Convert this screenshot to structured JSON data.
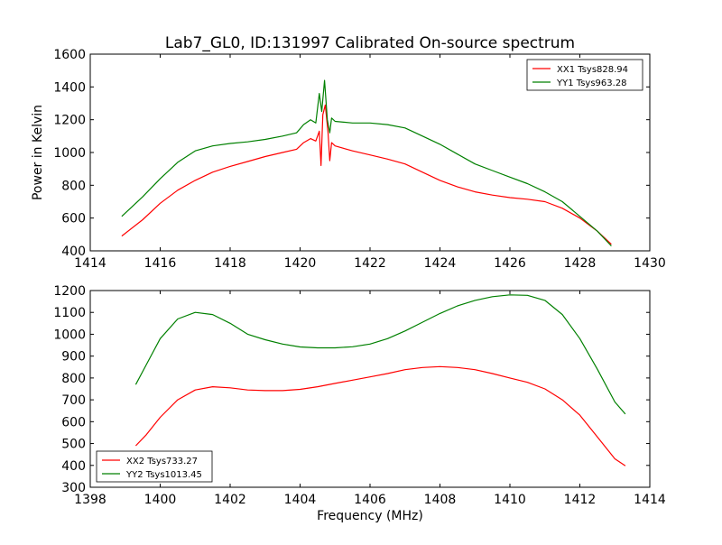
{
  "figure": {
    "title": "Lab7_GL0, ID:131997 Calibrated On-source spectrum",
    "shared_xlabel": "Frequency (MHz)"
  },
  "chart_data": [
    {
      "type": "line",
      "title": "Lab7_GL0, ID:131997 Calibrated On-source spectrum",
      "xlabel": "",
      "ylabel": "Power in Kelvin",
      "xlim": [
        1414,
        1430
      ],
      "ylim": [
        400,
        1600
      ],
      "xticks": [
        "1414",
        "1416",
        "1418",
        "1420",
        "1422",
        "1424",
        "1426",
        "1428",
        "1430"
      ],
      "yticks": [
        "400",
        "600",
        "800",
        "1000",
        "1200",
        "1400",
        "1600"
      ],
      "grid": false,
      "legend_position": "top-right",
      "series": [
        {
          "name": "XX1 Tsys828.94",
          "color": "#ff0000",
          "points": [
            [
              1414.9,
              490
            ],
            [
              1415.5,
              590
            ],
            [
              1416,
              690
            ],
            [
              1416.5,
              770
            ],
            [
              1417,
              830
            ],
            [
              1417.5,
              880
            ],
            [
              1418,
              915
            ],
            [
              1418.5,
              945
            ],
            [
              1419,
              975
            ],
            [
              1419.5,
              1000
            ],
            [
              1419.9,
              1020
            ],
            [
              1420.1,
              1060
            ],
            [
              1420.3,
              1085
            ],
            [
              1420.45,
              1070
            ],
            [
              1420.55,
              1130
            ],
            [
              1420.6,
              920
            ],
            [
              1420.65,
              1230
            ],
            [
              1420.72,
              1290
            ],
            [
              1420.8,
              1120
            ],
            [
              1420.85,
              950
            ],
            [
              1420.9,
              1060
            ],
            [
              1421,
              1040
            ],
            [
              1421.5,
              1010
            ],
            [
              1422,
              985
            ],
            [
              1422.5,
              960
            ],
            [
              1423,
              930
            ],
            [
              1423.5,
              880
            ],
            [
              1424,
              830
            ],
            [
              1424.5,
              790
            ],
            [
              1425,
              760
            ],
            [
              1425.5,
              740
            ],
            [
              1426,
              725
            ],
            [
              1426.5,
              715
            ],
            [
              1427,
              700
            ],
            [
              1427.5,
              660
            ],
            [
              1428,
              600
            ],
            [
              1428.5,
              520
            ],
            [
              1428.9,
              440
            ]
          ]
        },
        {
          "name": "YY1 Tsys963.28",
          "color": "#008000",
          "points": [
            [
              1414.9,
              610
            ],
            [
              1415.5,
              730
            ],
            [
              1416,
              840
            ],
            [
              1416.5,
              940
            ],
            [
              1417,
              1010
            ],
            [
              1417.5,
              1040
            ],
            [
              1418,
              1055
            ],
            [
              1418.5,
              1065
            ],
            [
              1419,
              1080
            ],
            [
              1419.5,
              1100
            ],
            [
              1419.9,
              1120
            ],
            [
              1420.1,
              1170
            ],
            [
              1420.3,
              1200
            ],
            [
              1420.45,
              1180
            ],
            [
              1420.55,
              1360
            ],
            [
              1420.62,
              1250
            ],
            [
              1420.7,
              1440
            ],
            [
              1420.78,
              1200
            ],
            [
              1420.85,
              1120
            ],
            [
              1420.9,
              1210
            ],
            [
              1421,
              1190
            ],
            [
              1421.5,
              1180
            ],
            [
              1422,
              1180
            ],
            [
              1422.5,
              1170
            ],
            [
              1423,
              1150
            ],
            [
              1423.5,
              1100
            ],
            [
              1424,
              1050
            ],
            [
              1424.5,
              990
            ],
            [
              1425,
              930
            ],
            [
              1425.5,
              890
            ],
            [
              1426,
              850
            ],
            [
              1426.5,
              810
            ],
            [
              1427,
              760
            ],
            [
              1427.5,
              700
            ],
            [
              1428,
              610
            ],
            [
              1428.5,
              520
            ],
            [
              1428.9,
              430
            ]
          ]
        }
      ]
    },
    {
      "type": "line",
      "title": "",
      "xlabel": "Frequency (MHz)",
      "ylabel": "",
      "xlim": [
        1398,
        1414
      ],
      "ylim": [
        300,
        1200
      ],
      "xticks": [
        "1398",
        "1400",
        "1402",
        "1404",
        "1406",
        "1408",
        "1410",
        "1412",
        "1414"
      ],
      "yticks": [
        "300",
        "400",
        "500",
        "600",
        "700",
        "800",
        "900",
        "1000",
        "1100",
        "1200"
      ],
      "grid": false,
      "legend_position": "bottom-left",
      "series": [
        {
          "name": "XX2 Tsys733.27",
          "color": "#ff0000",
          "points": [
            [
              1399.3,
              490
            ],
            [
              1399.6,
              540
            ],
            [
              1400,
              620
            ],
            [
              1400.5,
              700
            ],
            [
              1401,
              745
            ],
            [
              1401.5,
              760
            ],
            [
              1402,
              755
            ],
            [
              1402.5,
              745
            ],
            [
              1403,
              742
            ],
            [
              1403.5,
              742
            ],
            [
              1404,
              748
            ],
            [
              1404.5,
              760
            ],
            [
              1405,
              775
            ],
            [
              1405.5,
              790
            ],
            [
              1406,
              805
            ],
            [
              1406.5,
              820
            ],
            [
              1407,
              838
            ],
            [
              1407.5,
              848
            ],
            [
              1408,
              852
            ],
            [
              1408.5,
              848
            ],
            [
              1409,
              838
            ],
            [
              1409.5,
              820
            ],
            [
              1410,
              800
            ],
            [
              1410.5,
              780
            ],
            [
              1411,
              750
            ],
            [
              1411.5,
              700
            ],
            [
              1412,
              630
            ],
            [
              1412.5,
              530
            ],
            [
              1413,
              430
            ],
            [
              1413.3,
              398
            ]
          ]
        },
        {
          "name": "YY2 Tsys1013.45",
          "color": "#008000",
          "points": [
            [
              1399.3,
              770
            ],
            [
              1399.6,
              860
            ],
            [
              1400,
              980
            ],
            [
              1400.5,
              1070
            ],
            [
              1401,
              1100
            ],
            [
              1401.5,
              1090
            ],
            [
              1402,
              1050
            ],
            [
              1402.5,
              1000
            ],
            [
              1403,
              975
            ],
            [
              1403.5,
              955
            ],
            [
              1404,
              942
            ],
            [
              1404.5,
              938
            ],
            [
              1405,
              938
            ],
            [
              1405.5,
              943
            ],
            [
              1406,
              955
            ],
            [
              1406.5,
              980
            ],
            [
              1407,
              1015
            ],
            [
              1407.5,
              1055
            ],
            [
              1408,
              1095
            ],
            [
              1408.5,
              1130
            ],
            [
              1409,
              1155
            ],
            [
              1409.5,
              1172
            ],
            [
              1410,
              1180
            ],
            [
              1410.5,
              1178
            ],
            [
              1411,
              1155
            ],
            [
              1411.5,
              1090
            ],
            [
              1412,
              980
            ],
            [
              1412.5,
              840
            ],
            [
              1413,
              690
            ],
            [
              1413.3,
              635
            ]
          ]
        }
      ]
    }
  ]
}
